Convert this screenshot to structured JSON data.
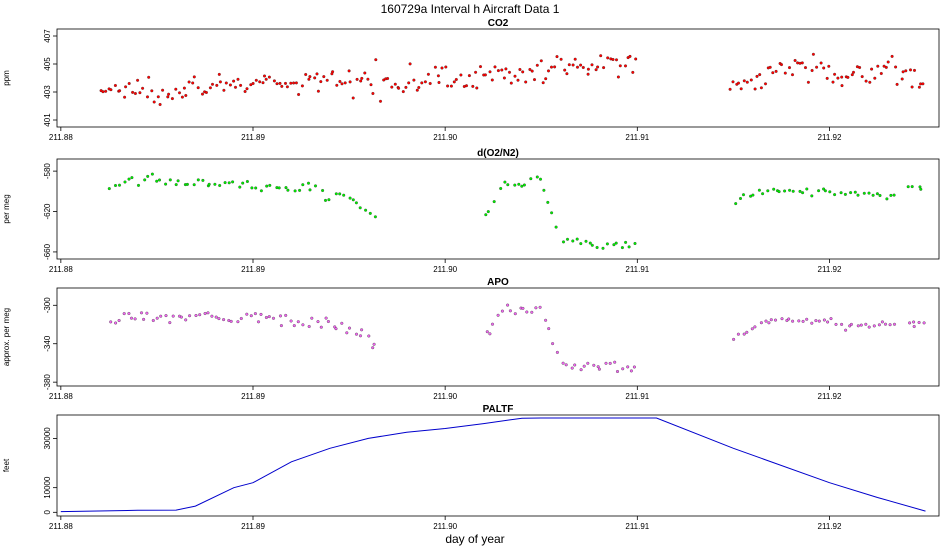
{
  "title": "160729a   Interval h Aircraft Data 1",
  "xlabel": "day of year",
  "chart_data": [
    {
      "type": "scatter",
      "title": "CO2",
      "ylabel": "ppm",
      "xlim": [
        211.8798,
        211.9257
      ],
      "ylim": [
        400.5,
        407.5
      ],
      "xticks": [
        211.88,
        211.89,
        211.9,
        211.91,
        211.92
      ],
      "xtick_labels": [
        "211.88",
        "211.89",
        "211.90",
        "211.91",
        "211.92"
      ],
      "yticks": [
        401,
        403,
        405,
        407
      ],
      "ytick_labels": [
        "401",
        "403",
        "405",
        "407"
      ],
      "color": "#ff0000",
      "points_per_segment": 190,
      "segments": [
        {
          "x": [
            211.882,
            211.885,
            211.888,
            211.891,
            211.894,
            211.897,
            211.9,
            211.903,
            211.906,
            211.909,
            211.91
          ],
          "y": [
            403.1,
            403.2,
            403.5,
            403.5,
            403.7,
            403.9,
            404.0,
            404.2,
            404.6,
            405.0,
            405.4
          ],
          "noise": 0.8
        },
        {
          "x": [
            211.9148,
            211.916,
            211.917,
            211.918,
            211.919,
            211.92,
            211.921,
            211.922,
            211.923,
            211.925
          ],
          "y": [
            403.3,
            404.0,
            404.5,
            405.0,
            405.2,
            404.0,
            404.0,
            404.4,
            404.6,
            404.0
          ],
          "noise": 0.8
        }
      ]
    },
    {
      "type": "scatter",
      "title": "d(O2/N2)",
      "ylabel": "per meg",
      "xlim": [
        211.8798,
        211.9257
      ],
      "ylim": [
        -667,
        -568
      ],
      "xticks": [
        211.88,
        211.89,
        211.9,
        211.91,
        211.92
      ],
      "xtick_labels": [
        "211.88",
        "211.89",
        "211.90",
        "211.91",
        "211.92"
      ],
      "yticks": [
        -660,
        -620,
        -580
      ],
      "ytick_labels": [
        "-660",
        "-620",
        "-580"
      ],
      "color": "#00ee00",
      "points_per_segment": 120,
      "segments": [
        {
          "x": [
            211.8825,
            211.8835,
            211.885,
            211.888,
            211.89,
            211.893,
            211.895,
            211.896,
            211.8965
          ],
          "y": [
            -597,
            -590,
            -590,
            -592,
            -595,
            -598,
            -605,
            -620,
            -632
          ],
          "noise": 5
        },
        {
          "x": [
            211.902,
            211.903,
            211.904,
            211.905,
            211.906,
            211.91
          ],
          "y": [
            -625,
            -592,
            -592,
            -590,
            -650,
            -653
          ],
          "noise": 4
        },
        {
          "x": [
            211.915,
            211.917,
            211.919,
            211.92,
            211.922,
            211.9235
          ],
          "y": [
            -610,
            -598,
            -600,
            -600,
            -603,
            -605
          ],
          "noise": 3
        },
        {
          "x": [
            211.924,
            211.925
          ],
          "y": [
            -597,
            -597
          ],
          "noise": 3
        }
      ]
    },
    {
      "type": "scatter",
      "title": "APO",
      "ylabel": "approx. per meg",
      "xlim": [
        211.8798,
        211.9257
      ],
      "ylim": [
        -384,
        -282
      ],
      "xticks": [
        211.88,
        211.89,
        211.9,
        211.91,
        211.92
      ],
      "xtick_labels": [
        "211.88",
        "211.89",
        "211.90",
        "211.91",
        "211.92"
      ],
      "yticks": [
        -380,
        -340,
        -300
      ],
      "ytick_labels": [
        "-380",
        "-340",
        "-300"
      ],
      "color": "#ee66ee",
      "points_per_segment": 130,
      "segments": [
        {
          "x": [
            211.8825,
            211.885,
            211.888,
            211.89,
            211.893,
            211.895,
            211.896,
            211.8965
          ],
          "y": [
            -315,
            -312,
            -310,
            -312,
            -315,
            -325,
            -340,
            -350
          ],
          "noise": 7
        },
        {
          "x": [
            211.902,
            211.903,
            211.904,
            211.905,
            211.906,
            211.91
          ],
          "y": [
            -340,
            -302,
            -303,
            -303,
            -362,
            -365
          ],
          "noise": 5
        },
        {
          "x": [
            211.915,
            211.917,
            211.919,
            211.921,
            211.922,
            211.9235
          ],
          "y": [
            -335,
            -315,
            -315,
            -320,
            -322,
            -318
          ],
          "noise": 4
        },
        {
          "x": [
            211.924,
            211.925
          ],
          "y": [
            -318,
            -318
          ],
          "noise": 4
        }
      ]
    },
    {
      "type": "line",
      "title": "PALTF",
      "ylabel": "feet",
      "xlim": [
        211.8798,
        211.9257
      ],
      "ylim": [
        -1500,
        39500
      ],
      "xticks": [
        211.88,
        211.89,
        211.9,
        211.91,
        211.92
      ],
      "xtick_labels": [
        "211.88",
        "211.89",
        "211.90",
        "211.91",
        "211.92"
      ],
      "yticks": [
        0,
        10000,
        30000
      ],
      "ytick_labels": [
        "0",
        "10000",
        "30000"
      ],
      "color": "#0000cc",
      "x": [
        211.88,
        211.884,
        211.886,
        211.887,
        211.889,
        211.89,
        211.892,
        211.894,
        211.896,
        211.898,
        211.9,
        211.902,
        211.904,
        211.905,
        211.908,
        211.911,
        211.915,
        211.92,
        211.9225,
        211.925
      ],
      "y": [
        300,
        800,
        900,
        2500,
        10000,
        12000,
        20500,
        26000,
        30000,
        32500,
        34000,
        36000,
        38200,
        38300,
        38300,
        38300,
        26000,
        12000,
        6000,
        500
      ]
    }
  ]
}
